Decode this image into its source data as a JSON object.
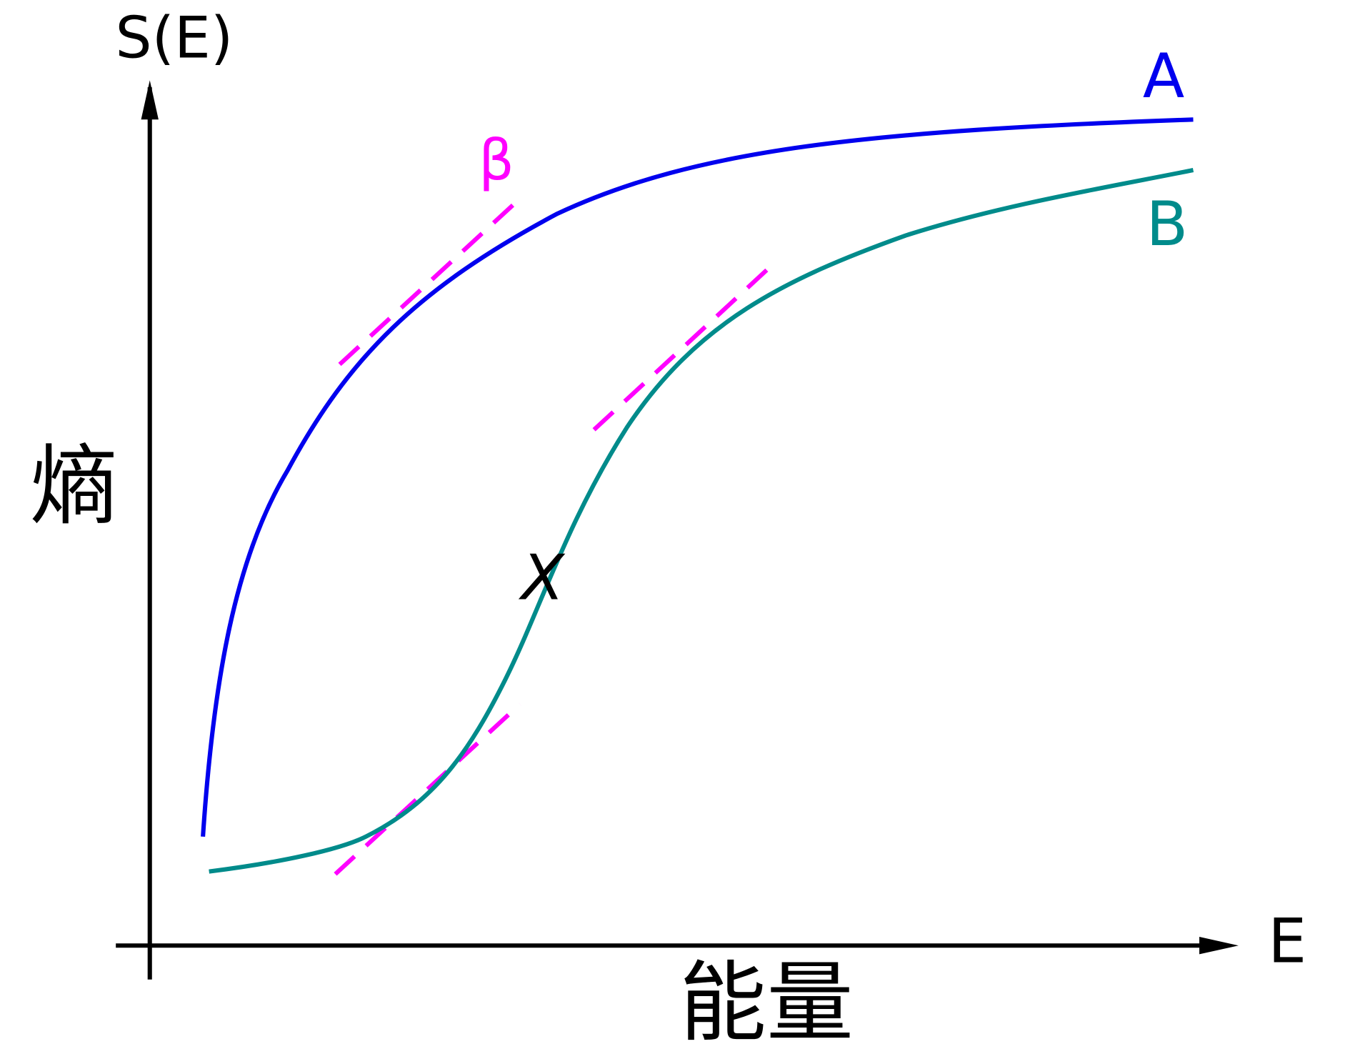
{
  "axes": {
    "y_label": "S(E)",
    "y_title": "熵",
    "x_label": "E",
    "x_title": "能量"
  },
  "curves": [
    {
      "label": "A"
    },
    {
      "label": "B"
    }
  ],
  "tangent_label": "β",
  "point_label": "X"
}
